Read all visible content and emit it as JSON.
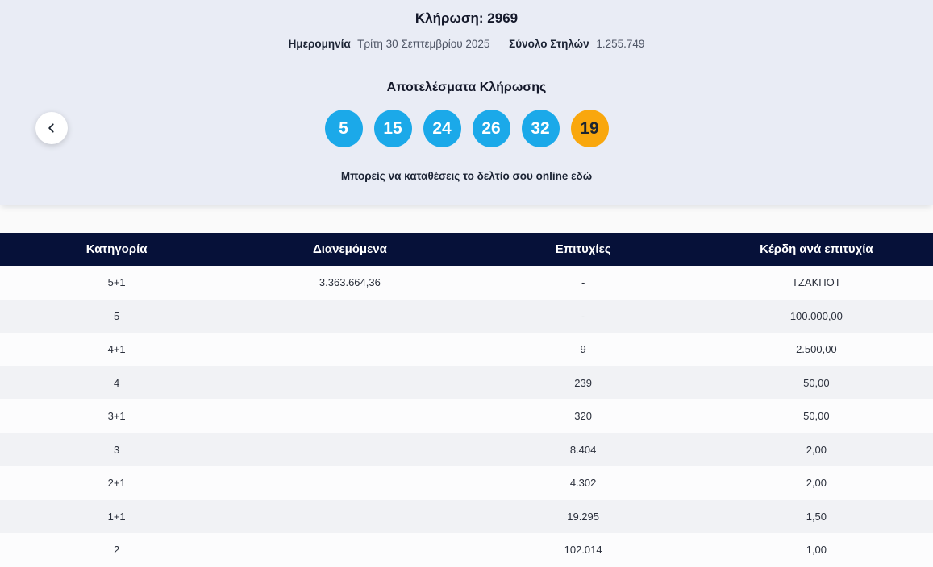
{
  "draw": {
    "title_label": "Κλήρωση:",
    "title_number": "2969",
    "date_label": "Ημερομηνία",
    "date_value": "Τρίτη 30 Σεπτεμβρίου 2025",
    "columns_label": "Σύνολο Στηλών",
    "columns_value": "1.255.749",
    "results_heading": "Αποτελέσματα Κλήρωσης",
    "numbers": [
      "5",
      "15",
      "24",
      "26",
      "32"
    ],
    "joker": "19",
    "cta_text": "Μπορείς να καταθέσεις το δελτίο σου online",
    "cta_link": "εδώ"
  },
  "colors": {
    "ball_blue": "#1ba9e9",
    "ball_orange": "#f9a70d",
    "joker_text": "#1b2430",
    "header_navy": "#061139",
    "card_bg": "#e9ecf5"
  },
  "table": {
    "headers": [
      "Κατηγορία",
      "Διανεμόμενα",
      "Επιτυχίες",
      "Κέρδη ανά επιτυχία"
    ],
    "rows": [
      [
        "5+1",
        "3.363.664,36",
        "-",
        "ΤΖΑΚΠΟΤ"
      ],
      [
        "5",
        "",
        "-",
        "100.000,00"
      ],
      [
        "4+1",
        "",
        "9",
        "2.500,00"
      ],
      [
        "4",
        "",
        "239",
        "50,00"
      ],
      [
        "3+1",
        "",
        "320",
        "50,00"
      ],
      [
        "3",
        "",
        "8.404",
        "2,00"
      ],
      [
        "2+1",
        "",
        "4.302",
        "2,00"
      ],
      [
        "1+1",
        "",
        "19.295",
        "1,50"
      ],
      [
        "2",
        "",
        "102.014",
        "1,00"
      ]
    ]
  }
}
